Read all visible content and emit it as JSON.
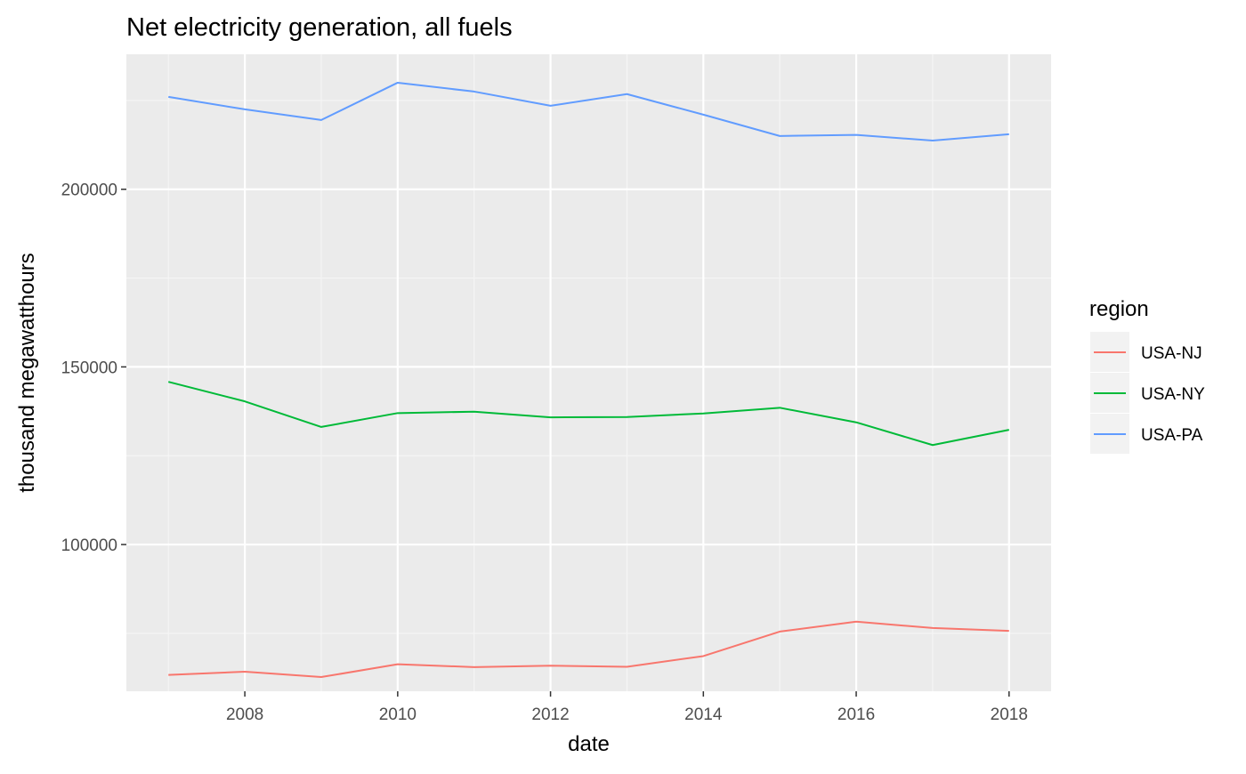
{
  "chart_data": {
    "type": "line",
    "title": "Net electricity generation, all fuels",
    "xlabel": "date",
    "ylabel": "thousand megawatthours",
    "x": [
      2007,
      2008,
      2009,
      2010,
      2011,
      2012,
      2013,
      2014,
      2015,
      2016,
      2017,
      2018
    ],
    "xlim": [
      2006.45,
      2018.55
    ],
    "ylim": [
      58700,
      238000
    ],
    "x_ticks": [
      2008,
      2010,
      2012,
      2014,
      2016,
      2018
    ],
    "x_tick_labels": [
      "2008",
      "2010",
      "2012",
      "2014",
      "2016",
      "2018"
    ],
    "y_ticks": [
      100000,
      150000,
      200000
    ],
    "y_tick_labels": [
      "100000",
      "150000",
      "200000"
    ],
    "grid": true,
    "legend": {
      "title": "region",
      "position": "right"
    },
    "series": [
      {
        "name": "USA-NJ",
        "color": "#F8766D",
        "values": [
          63300,
          64200,
          62700,
          66300,
          65500,
          65900,
          65600,
          68600,
          75500,
          78300,
          76500,
          75700
        ]
      },
      {
        "name": "USA-NY",
        "color": "#00BA38",
        "values": [
          145800,
          140300,
          133100,
          137000,
          137400,
          135800,
          135900,
          136900,
          138500,
          134400,
          128000,
          132300
        ]
      },
      {
        "name": "USA-PA",
        "color": "#619CFF",
        "values": [
          226000,
          222500,
          219500,
          230000,
          227500,
          223500,
          226800,
          221000,
          215000,
          215300,
          213700,
          215500
        ]
      }
    ]
  }
}
